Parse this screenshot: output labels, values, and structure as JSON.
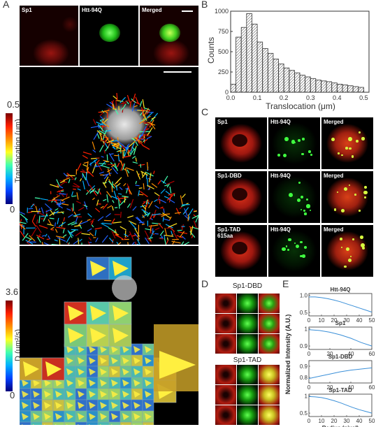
{
  "panels": {
    "a": {
      "label": "A",
      "top_tiles": [
        "Sp1",
        "Htt-94Q",
        "Merged"
      ],
      "colorbar_translocation": {
        "max": "0.5",
        "min": "0",
        "label": "Translocation (μm)"
      },
      "colorbar_diffusion": {
        "max": "3.6",
        "min": "0",
        "label": "D (μm²/s)"
      }
    },
    "b": {
      "label": "B"
    },
    "c": {
      "label": "C",
      "rows": [
        [
          "Sp1",
          "Htt-94Q",
          "Merged"
        ],
        [
          "Sp1-DBD",
          "Htt-94Q",
          "Merged"
        ],
        [
          "Sp1-TAD\n615aa",
          "Htt-94Q",
          "Merged"
        ]
      ]
    },
    "d": {
      "label": "D",
      "titles": [
        "Sp1-DBD",
        "Sp1-TAD"
      ]
    },
    "e": {
      "label": "E"
    }
  },
  "chart_data": [
    {
      "type": "bar",
      "xlabel": "Translocation (μm)",
      "ylabel": "Counts",
      "xlim": [
        0,
        0.52
      ],
      "ylim": [
        0,
        1000
      ],
      "xticks": [
        "0.0",
        "0.1",
        "0.2",
        "0.3",
        "0.4",
        "0.5"
      ],
      "yticks": [
        "0",
        "250",
        "500",
        "750",
        "1000"
      ],
      "bin_width": 0.02,
      "values": [
        100,
        680,
        800,
        970,
        840,
        620,
        540,
        480,
        410,
        350,
        300,
        270,
        240,
        210,
        190,
        170,
        150,
        140,
        130,
        115,
        100,
        90,
        80,
        70,
        60
      ]
    },
    {
      "type": "line",
      "title": "Htt-94Q",
      "xlabel": "",
      "ylabel": "",
      "xlim": [
        0,
        50
      ],
      "ylim": [
        0.4,
        1.05
      ],
      "xticks": [
        "0",
        "10",
        "20",
        "30",
        "40",
        "50"
      ],
      "yticks": [
        "0.5",
        "1.0"
      ],
      "x": [
        0,
        5,
        10,
        15,
        20,
        25,
        30,
        35,
        40,
        45,
        50
      ],
      "y": [
        0.95,
        0.95,
        0.93,
        0.9,
        0.86,
        0.81,
        0.75,
        0.69,
        0.63,
        0.57,
        0.51
      ]
    },
    {
      "type": "line",
      "title": "Sp1",
      "xlabel": "",
      "ylabel": "",
      "xlim": [
        0,
        60
      ],
      "ylim": [
        0.88,
        1.01
      ],
      "xticks": [
        "0",
        "20",
        "40",
        "60"
      ],
      "yticks": [
        "0.9",
        "1"
      ],
      "x": [
        0,
        10,
        20,
        30,
        40,
        50,
        60
      ],
      "y": [
        0.995,
        0.99,
        0.98,
        0.965,
        0.945,
        0.92,
        0.9
      ]
    },
    {
      "type": "line",
      "title": "Sp1-DBD",
      "xlabel": "",
      "ylabel": "",
      "xlim": [
        0,
        60
      ],
      "ylim": [
        0.75,
        0.95
      ],
      "xticks": [
        "0",
        "20",
        "40",
        "60"
      ],
      "yticks": [
        "0.8",
        "0.9"
      ],
      "x": [
        0,
        10,
        20,
        30,
        40,
        50,
        60
      ],
      "y": [
        0.79,
        0.81,
        0.83,
        0.85,
        0.865,
        0.875,
        0.885
      ]
    },
    {
      "type": "line",
      "title": "Sp1-TAD",
      "xlabel": "Radius (pixel)",
      "ylabel": "",
      "xlim": [
        0,
        50
      ],
      "ylim": [
        0.4,
        1.05
      ],
      "xticks": [
        "0",
        "10",
        "20",
        "30",
        "40",
        "50"
      ],
      "yticks": [
        "0.5",
        "1"
      ],
      "x": [
        0,
        5,
        10,
        15,
        20,
        25,
        30,
        35,
        40,
        45,
        50
      ],
      "y": [
        0.98,
        0.97,
        0.95,
        0.91,
        0.86,
        0.8,
        0.73,
        0.66,
        0.6,
        0.55,
        0.5
      ]
    }
  ],
  "panel_e_ylabel": "Normalized Intensity (A.U.)"
}
